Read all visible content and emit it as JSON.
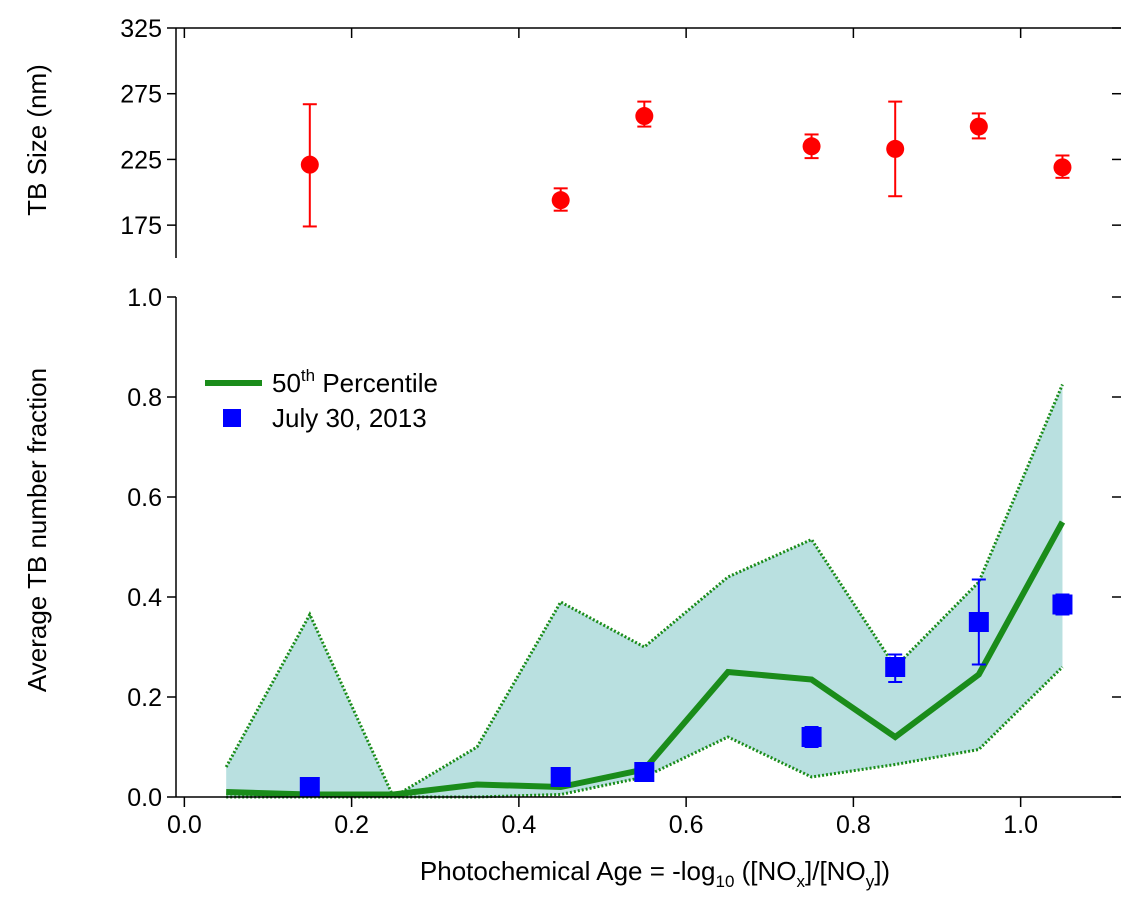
{
  "chart_data": [
    {
      "type": "scatter",
      "ylabel": "TB Size (nm)",
      "ylim": [
        150,
        325
      ],
      "yticks": [
        175,
        225,
        275,
        325
      ],
      "xlim": [
        -0.01,
        1.12
      ],
      "grid": false,
      "colors": {
        "points": "#ff0000"
      },
      "series": [
        {
          "x": [
            0.15,
            0.45,
            0.55,
            0.75,
            0.85,
            0.95,
            1.05
          ],
          "y": [
            221,
            194,
            258,
            235,
            233,
            250,
            219
          ],
          "err_low": [
            174,
            186,
            250,
            226,
            197,
            241,
            211
          ],
          "err_high": [
            267,
            203,
            269,
            244,
            269,
            260,
            228
          ]
        }
      ]
    },
    {
      "type": "line",
      "ylabel": "Average TB number fraction",
      "xlabel_parts": {
        "pre": "Photochemical Age = -log",
        "sub1": "10",
        "mid1": " ([NO",
        "sub2": "x",
        "mid2": "]/[NO",
        "sub3": "y",
        "post": "])"
      },
      "xlim": [
        -0.01,
        1.12
      ],
      "ylim": [
        0,
        1.0
      ],
      "xticks": [
        "0.0",
        "0.2",
        "0.4",
        "0.6",
        "0.8",
        "1.0"
      ],
      "yticks": [
        "0.0",
        "0.2",
        "0.4",
        "0.6",
        "0.8",
        "1.0"
      ],
      "grid": false,
      "legend_position": "upper-left",
      "colors": {
        "median": "#1a8c1a",
        "band": "#b9e0e0",
        "band_edge": "#1a8c1a",
        "points": "#0000ff"
      },
      "x": [
        0.05,
        0.15,
        0.25,
        0.35,
        0.45,
        0.55,
        0.65,
        0.75,
        0.85,
        0.95,
        1.05
      ],
      "band_upper": [
        0.06,
        0.365,
        0.0,
        0.1,
        0.39,
        0.3,
        0.44,
        0.515,
        0.26,
        0.43,
        0.825
      ],
      "band_lower": [
        0.0,
        0.0,
        0.0,
        0.0,
        0.005,
        0.04,
        0.12,
        0.04,
        0.065,
        0.095,
        0.26
      ],
      "series": [
        {
          "name": "50th Percentile",
          "legend_main": "50",
          "legend_sup": "th",
          "legend_rest": " Percentile",
          "x": [
            0.05,
            0.15,
            0.25,
            0.35,
            0.45,
            0.55,
            0.65,
            0.75,
            0.85,
            0.95,
            1.05
          ],
          "y": [
            0.01,
            0.005,
            0.005,
            0.025,
            0.02,
            0.055,
            0.25,
            0.235,
            0.12,
            0.245,
            0.55
          ]
        },
        {
          "name": "July 30, 2013",
          "x": [
            0.15,
            0.45,
            0.55,
            0.75,
            0.85,
            0.95,
            1.05
          ],
          "y": [
            0.02,
            0.04,
            0.05,
            0.12,
            0.26,
            0.35,
            0.385
          ],
          "err_low": [
            0.015,
            0.03,
            0.045,
            0.1,
            0.23,
            0.265,
            0.365
          ],
          "err_high": [
            0.025,
            0.05,
            0.055,
            0.14,
            0.285,
            0.435,
            0.405
          ]
        }
      ]
    }
  ]
}
